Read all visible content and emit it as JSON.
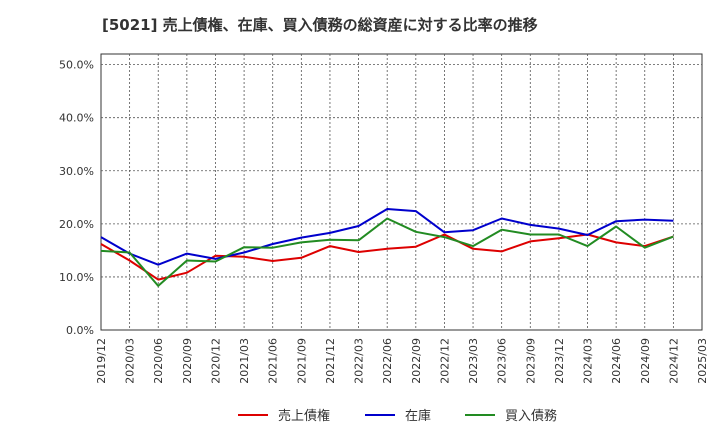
{
  "chart_data": {
    "type": "line",
    "title": "[5021]  売上債権、在庫、買入債務の総資産に対する比率の推移",
    "xlabel": "",
    "ylabel": "",
    "ylim": [
      0,
      52
    ],
    "y_ticks": [
      0,
      10,
      20,
      30,
      40,
      50
    ],
    "y_tick_labels": [
      "0.0%",
      "10.0%",
      "20.0%",
      "30.0%",
      "40.0%",
      "50.0%"
    ],
    "categories": [
      "2019/12",
      "2020/03",
      "2020/06",
      "2020/09",
      "2020/12",
      "2021/03",
      "2021/06",
      "2021/09",
      "2021/12",
      "2022/03",
      "2022/06",
      "2022/09",
      "2022/12",
      "2023/03",
      "2023/06",
      "2023/09",
      "2023/12",
      "2024/03",
      "2024/06",
      "2024/09",
      "2024/12",
      "2025/03"
    ],
    "grid": true,
    "legend_position": "bottom",
    "series": [
      {
        "name": "売上債権",
        "color": "#dd0000",
        "values": [
          16.2,
          13.1,
          9.5,
          10.8,
          14.0,
          13.8,
          13.0,
          13.6,
          15.8,
          14.7,
          15.3,
          15.7,
          18.0,
          15.3,
          14.8,
          16.7,
          17.3,
          18.0,
          16.5,
          15.8,
          17.6,
          null
        ]
      },
      {
        "name": "在庫",
        "color": "#0000cc",
        "values": [
          17.5,
          14.4,
          12.3,
          14.4,
          13.4,
          14.6,
          16.2,
          17.4,
          18.3,
          19.6,
          22.8,
          22.4,
          18.4,
          18.8,
          21.0,
          19.8,
          19.1,
          17.9,
          20.5,
          20.8,
          20.6,
          null
        ]
      },
      {
        "name": "買入債務",
        "color": "#228B22",
        "values": [
          14.9,
          14.6,
          8.3,
          13.1,
          12.9,
          15.6,
          15.5,
          16.5,
          17.0,
          16.9,
          21.0,
          18.5,
          17.5,
          15.8,
          18.9,
          18.0,
          18.0,
          15.8,
          19.5,
          15.5,
          17.6,
          null
        ]
      }
    ]
  }
}
